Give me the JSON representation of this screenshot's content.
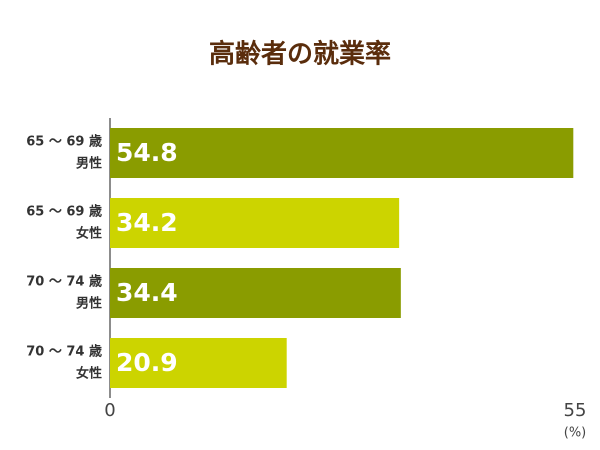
{
  "chart_data": {
    "type": "bar",
    "orientation": "horizontal",
    "title": "高齢者の就業率",
    "categories": [
      [
        "65 ～ 69 歳",
        "男性"
      ],
      [
        "65 ～ 69 歳",
        "女性"
      ],
      [
        "70 ～ 74 歳",
        "男性"
      ],
      [
        "70 ～ 74 歳",
        "女性"
      ]
    ],
    "values": [
      54.8,
      34.2,
      34.4,
      20.9
    ],
    "colors": [
      "#8a9c00",
      "#ccd400",
      "#8a9c00",
      "#ccd400"
    ],
    "xlim": [
      0,
      55
    ],
    "xticks": [
      0,
      55
    ],
    "x_unit": "(%)",
    "title_color": "#5a2d0c"
  }
}
